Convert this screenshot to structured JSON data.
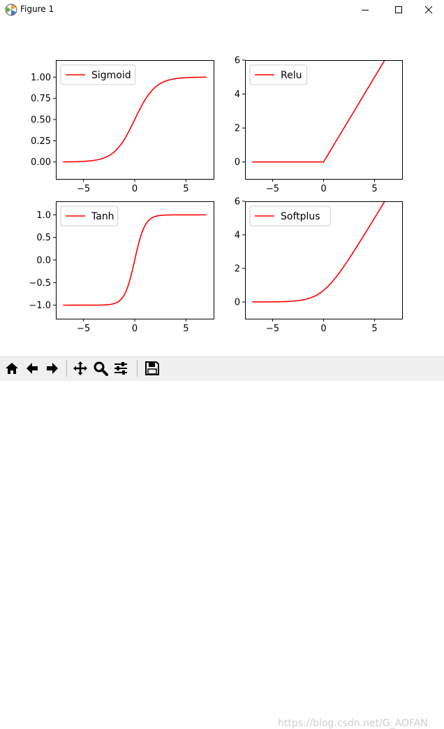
{
  "window": {
    "title": "Figure 1"
  },
  "watermark": "https://blog.csdn.net/G_AOFAN",
  "colors": {
    "line": "#ff0000",
    "axes": "#000000",
    "toolbar_bg": "#f0f0f0"
  },
  "toolbar": {
    "buttons": [
      "home-icon",
      "back-arrow-icon",
      "forward-arrow-icon",
      "pan-icon",
      "zoom-icon",
      "configure-subplots-icon",
      "save-icon"
    ]
  },
  "chart_data": [
    {
      "type": "line",
      "function": "sigmoid",
      "series": [
        {
          "name": "Sigmoid"
        }
      ],
      "x_range": [
        -7,
        7
      ],
      "xlim": [
        -7.7,
        7.7
      ],
      "ylim": [
        -0.2,
        1.2
      ],
      "xticks": [
        -5,
        0,
        5
      ],
      "xtick_labels": [
        "−5",
        "0",
        "5"
      ],
      "yticks": [
        0.0,
        0.25,
        0.5,
        0.75,
        1.0
      ],
      "ytick_labels": [
        "0.00",
        "0.25",
        "0.50",
        "0.75",
        "1.00"
      ],
      "legend": "top-left"
    },
    {
      "type": "line",
      "function": "relu",
      "series": [
        {
          "name": "Relu"
        }
      ],
      "x_range": [
        -7,
        7
      ],
      "xlim": [
        -7.7,
        7.7
      ],
      "ylim": [
        -1,
        6
      ],
      "xticks": [
        -5,
        0,
        5
      ],
      "xtick_labels": [
        "−5",
        "0",
        "5"
      ],
      "yticks": [
        0,
        2,
        4,
        6
      ],
      "ytick_labels": [
        "0",
        "2",
        "4",
        "6"
      ],
      "legend": "top-left"
    },
    {
      "type": "line",
      "function": "tanh",
      "series": [
        {
          "name": "Tanh"
        }
      ],
      "x_range": [
        -7,
        7
      ],
      "xlim": [
        -7.7,
        7.7
      ],
      "ylim": [
        -1.3,
        1.3
      ],
      "xticks": [
        -5,
        0,
        5
      ],
      "xtick_labels": [
        "−5",
        "0",
        "5"
      ],
      "yticks": [
        -1.0,
        -0.5,
        0.0,
        0.5,
        1.0
      ],
      "ytick_labels": [
        "−1.0",
        "−0.5",
        "0.0",
        "0.5",
        "1.0"
      ],
      "legend": "top-left"
    },
    {
      "type": "line",
      "function": "softplus",
      "series": [
        {
          "name": "Softplus"
        }
      ],
      "x_range": [
        -7,
        7
      ],
      "xlim": [
        -7.7,
        7.7
      ],
      "ylim": [
        -1,
        6
      ],
      "xticks": [
        -5,
        0,
        5
      ],
      "xtick_labels": [
        "−5",
        "0",
        "5"
      ],
      "yticks": [
        0,
        2,
        4,
        6
      ],
      "ytick_labels": [
        "0",
        "2",
        "4",
        "6"
      ],
      "legend": "top-left"
    }
  ]
}
